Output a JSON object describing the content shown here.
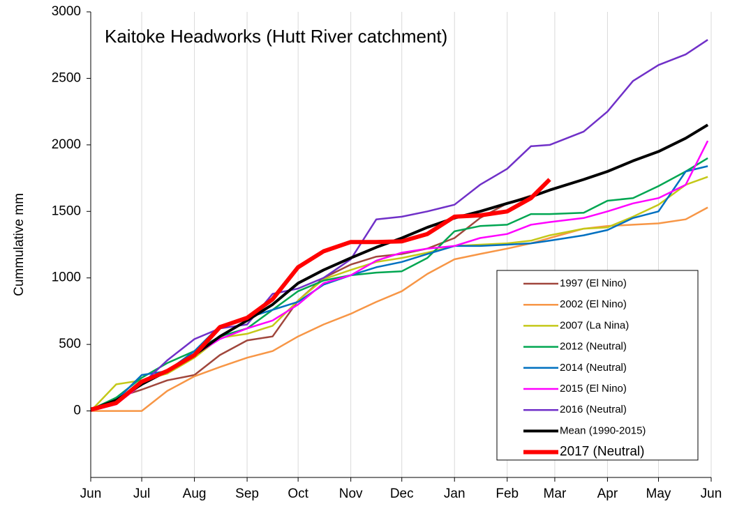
{
  "chart_data": {
    "type": "line",
    "title": "Kaitoke Headworks (Hutt River catchment)",
    "y_label": "Cummulative mm",
    "x": [
      0,
      15,
      30,
      45,
      61,
      76,
      92,
      107,
      122,
      137,
      153,
      168,
      183,
      198,
      214,
      229,
      245,
      259,
      270,
      290,
      304,
      319,
      334,
      350,
      363
    ],
    "xlim": [
      0,
      365
    ],
    "xticks": [
      {
        "value": 0,
        "label": "Jun"
      },
      {
        "value": 30,
        "label": "Jul"
      },
      {
        "value": 61,
        "label": "Aug"
      },
      {
        "value": 92,
        "label": "Sep"
      },
      {
        "value": 122,
        "label": "Oct"
      },
      {
        "value": 153,
        "label": "Nov"
      },
      {
        "value": 183,
        "label": "Dec"
      },
      {
        "value": 214,
        "label": "Jan"
      },
      {
        "value": 245,
        "label": "Feb"
      },
      {
        "value": 273,
        "label": "Mar"
      },
      {
        "value": 304,
        "label": "Apr"
      },
      {
        "value": 334,
        "label": "May"
      },
      {
        "value": 365,
        "label": "Jun"
      }
    ],
    "ylim": [
      -500,
      3000
    ],
    "yticks": [
      0,
      500,
      1000,
      1500,
      2000,
      2500,
      3000
    ],
    "grid": "x",
    "series": [
      {
        "name": "1997 (El Nino)",
        "color": "#a0463c",
        "values": [
          0,
          100,
          160,
          230,
          270,
          420,
          530,
          560,
          830,
          1000,
          1100,
          1160,
          1180,
          1220,
          1300,
          1450,
          1560,
          1620,
          null,
          null,
          null,
          null,
          null,
          null,
          null
        ]
      },
      {
        "name": "2002 (El Nino)",
        "color": "#f79646",
        "values": [
          0,
          0,
          0,
          150,
          260,
          330,
          400,
          450,
          560,
          650,
          730,
          820,
          900,
          1030,
          1140,
          1180,
          1220,
          1260,
          1300,
          1370,
          1390,
          1400,
          1410,
          1440,
          1530
        ]
      },
      {
        "name": "2007 (La Nina)",
        "color": "#c4c818",
        "values": [
          0,
          200,
          230,
          280,
          400,
          550,
          580,
          640,
          830,
          990,
          1060,
          1120,
          1150,
          1190,
          1240,
          1250,
          1260,
          1280,
          1320,
          1370,
          1380,
          1460,
          1550,
          1700,
          1760
        ]
      },
      {
        "name": "2012 (Neutral)",
        "color": "#00a651",
        "values": [
          10,
          100,
          250,
          360,
          450,
          560,
          620,
          760,
          900,
          980,
          1020,
          1040,
          1050,
          1150,
          1350,
          1390,
          1400,
          1480,
          1480,
          1490,
          1580,
          1600,
          1690,
          1800,
          1900
        ]
      },
      {
        "name": "2014 (Neutral)",
        "color": "#0070c0",
        "values": [
          0,
          80,
          270,
          300,
          450,
          640,
          700,
          760,
          820,
          950,
          1020,
          1080,
          1120,
          1180,
          1240,
          1240,
          1250,
          1260,
          1280,
          1320,
          1360,
          1450,
          1500,
          1800,
          1840
        ]
      },
      {
        "name": "2015 (El Nino)",
        "color": "#ff00ff",
        "values": [
          0,
          50,
          200,
          300,
          420,
          540,
          620,
          680,
          800,
          960,
          1020,
          1130,
          1190,
          1220,
          1240,
          1300,
          1330,
          1400,
          1420,
          1450,
          1500,
          1560,
          1600,
          1700,
          2030
        ]
      },
      {
        "name": "2016 (Neutral)",
        "color": "#7030c8",
        "values": [
          0,
          60,
          200,
          380,
          540,
          620,
          650,
          880,
          920,
          1000,
          1140,
          1440,
          1460,
          1500,
          1550,
          1700,
          1820,
          1990,
          2000,
          2100,
          2250,
          2480,
          2600,
          2680,
          2790
        ]
      },
      {
        "name": "Mean (1990-2015)",
        "color": "#000000",
        "values": [
          10,
          80,
          200,
          300,
          420,
          560,
          680,
          800,
          960,
          1060,
          1150,
          1230,
          1300,
          1380,
          1450,
          1500,
          1560,
          1610,
          1660,
          1740,
          1800,
          1880,
          1950,
          2050,
          2150
        ]
      },
      {
        "name": "2017 (Neutral)",
        "color": "#ff0000",
        "values": [
          10,
          60,
          220,
          300,
          420,
          630,
          700,
          840,
          1080,
          1200,
          1270,
          1270,
          1275,
          1330,
          1460,
          1470,
          1500,
          1600,
          1740,
          null,
          null,
          null,
          null,
          null,
          null
        ]
      }
    ]
  }
}
